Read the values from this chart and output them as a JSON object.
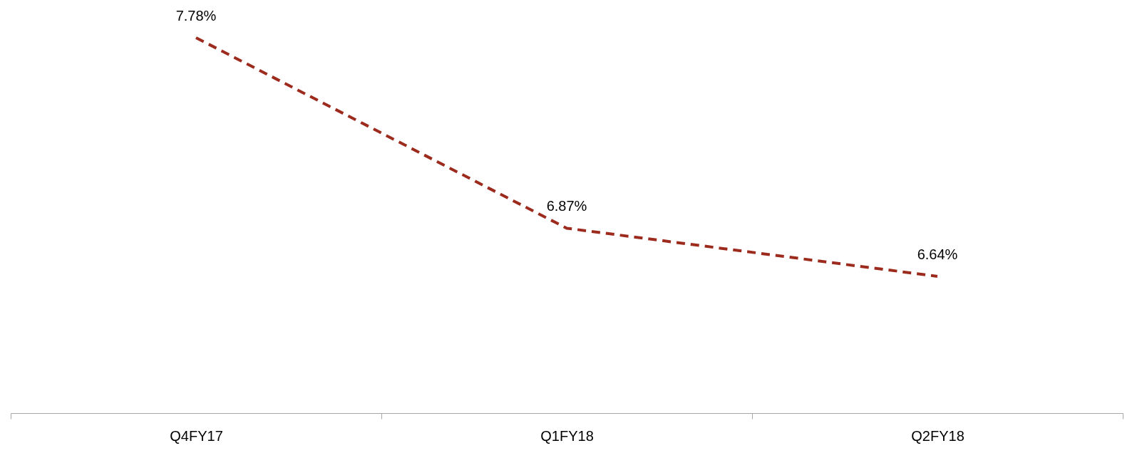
{
  "chart_data": {
    "type": "line",
    "categories": [
      "Q4FY17",
      "Q1FY18",
      "Q2FY18"
    ],
    "series": [
      {
        "color": "#9c2b1e",
        "values": [
          7.78,
          6.87,
          6.64
        ],
        "value_labels": [
          "7.78%",
          "6.87%",
          "6.64%"
        ]
      }
    ],
    "line_style": "dashed",
    "marker": "none"
  }
}
